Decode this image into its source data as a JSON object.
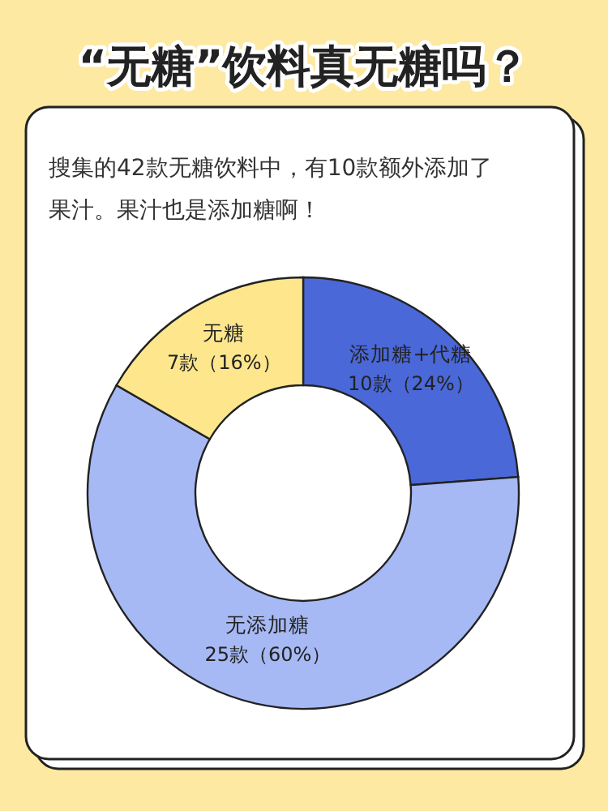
{
  "chart_data": {
    "type": "donut",
    "title": "“无糖”饮料真无糖吗？",
    "subtitle": "搜集的42款无糖饮料中，有10款额外添加了果汁。果汁也是添加糖啊！",
    "categories": [
      "添加糖+代糖",
      "无添加糖",
      "无糖"
    ],
    "values": [
      10,
      25,
      7
    ],
    "value_labels": [
      "10款（24%）",
      "25款（60%）",
      "7款（16%）"
    ],
    "colors": [
      "#4a68d8",
      "#a6b9f4",
      "#fde68c"
    ],
    "legend": false
  }
}
